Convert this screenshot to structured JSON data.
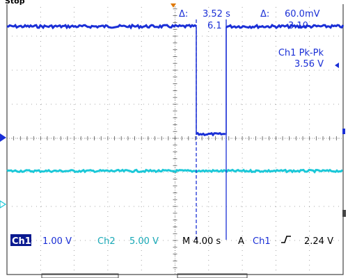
{
  "status": {
    "label": "Stop"
  },
  "cursors": {
    "delta_time": "3.52 s",
    "delta_volt": "60.0mV",
    "cursor_time_partial": "6.1",
    "cursor_volt_partial": "3.10"
  },
  "measurement": {
    "title": "Ch1 Pk-Pk",
    "value": "3.56 V"
  },
  "bottom_bar": {
    "ch1_label": "Ch1",
    "ch1_scale": "1.00 V",
    "ch2_label": "Ch2",
    "ch2_scale": "5.00 V",
    "timebase": "M 4.00 s",
    "trigger_mode": "A",
    "trigger_source": "Ch1",
    "trigger_level": "2.24 V"
  },
  "colors": {
    "ch1": "#1a2fd6",
    "ch2": "#1ac8d8",
    "trigger": "#e07800",
    "grid": "#8a8a8a"
  },
  "icons": {
    "delta": "delta-symbol",
    "trigger_marker": "orange-triangle-down",
    "ch1_marker": "blue-arrow-right",
    "ch2_marker": "cyan-arrow-right",
    "rising_edge": "rising-edge-icon"
  }
}
